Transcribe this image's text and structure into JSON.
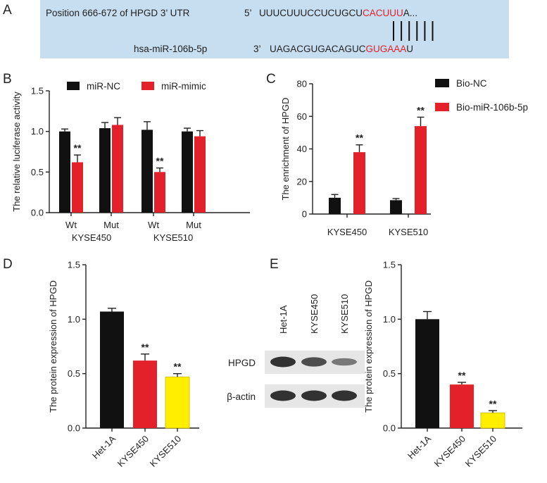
{
  "panel_letters": {
    "a": "A",
    "b": "B",
    "c": "C",
    "d": "D",
    "e": "E"
  },
  "colors": {
    "black": "#111111",
    "red": "#e3212b",
    "yellow": "#ffee00",
    "banner": "#c7ddf0"
  },
  "panel_a": {
    "utr_label": "Position 666-672 of HPGD 3’ UTR",
    "utr_prime": "5’",
    "utr_seq_prefix": "UUUCUUUCCUCUGCU",
    "utr_seq_site": "CACUUU",
    "utr_seq_suffix": "A...",
    "mirna_label": "hsa-miR-106b-5p",
    "mirna_prime": "3’",
    "mirna_seq_prefix": "UAGACGUGACAGUC",
    "mirna_seq_site": "GUGAAA",
    "mirna_seq_suffix": "U"
  },
  "chart_data": [
    {
      "panel": "B",
      "type": "bar",
      "ylabel": "The relative luciferase activity",
      "ylim": [
        0,
        1.5
      ],
      "yticks": [
        "0.0",
        "0.5",
        "1.0",
        "1.5"
      ],
      "categories": [
        "Wt",
        "Mut",
        "Wt",
        "Mut"
      ],
      "group_labels": [
        "KYSE450",
        "KYSE510"
      ],
      "series": [
        {
          "name": "miR-NC",
          "color": "#111111",
          "values": [
            1.0,
            1.04,
            1.02,
            1.0
          ],
          "errors": [
            0.03,
            0.07,
            0.1,
            0.04
          ]
        },
        {
          "name": "miR-mimic",
          "color": "#e3212b",
          "values": [
            0.62,
            1.08,
            0.5,
            0.94
          ],
          "errors": [
            0.09,
            0.09,
            0.05,
            0.07
          ]
        }
      ],
      "significance": [
        "**",
        "",
        "**",
        ""
      ],
      "legend": "top"
    },
    {
      "panel": "C",
      "type": "bar",
      "ylabel": "The enrichment of HPGD",
      "ylim": [
        0,
        80
      ],
      "yticks": [
        "0",
        "20",
        "40",
        "60",
        "80"
      ],
      "categories": [
        "KYSE450",
        "KYSE510"
      ],
      "series": [
        {
          "name": "Bio-NC",
          "color": "#111111",
          "values": [
            10,
            8.5
          ],
          "errors": [
            2,
            1
          ]
        },
        {
          "name": "Bio-miR-106b-5p",
          "color": "#e3212b",
          "values": [
            38,
            54
          ],
          "errors": [
            4.5,
            5.5
          ]
        }
      ],
      "significance": [
        "**",
        "**"
      ],
      "legend": "top-right"
    },
    {
      "panel": "D",
      "type": "bar",
      "ylabel": "The protein expression of HPGD",
      "ylim": [
        0,
        1.5
      ],
      "yticks": [
        "0.0",
        "0.5",
        "1.0",
        "1.5"
      ],
      "categories": [
        "Het-1A",
        "KYSE450",
        "KYSE510"
      ],
      "values": [
        1.07,
        0.62,
        0.47
      ],
      "errors": [
        0.03,
        0.06,
        0.03
      ],
      "colors": [
        "#111111",
        "#e3212b",
        "#ffee00"
      ],
      "significance": [
        "",
        "**",
        "**"
      ]
    },
    {
      "panel": "E",
      "type": "bar",
      "ylabel": "The protein expression of HPGD",
      "ylim": [
        0,
        1.5
      ],
      "yticks": [
        "0.0",
        "0.5",
        "1.0",
        "1.5"
      ],
      "categories": [
        "Het-1A",
        "KYSE450",
        "KYSE510"
      ],
      "values": [
        1.0,
        0.4,
        0.14
      ],
      "errors": [
        0.07,
        0.02,
        0.02
      ],
      "colors": [
        "#111111",
        "#e3212b",
        "#ffee00"
      ],
      "significance": [
        "",
        "**",
        "**"
      ]
    }
  ],
  "western_blot": {
    "lanes": [
      "Het-1A",
      "KYSE450",
      "KYSE510"
    ],
    "rows": [
      {
        "label": "HPGD",
        "intensity": [
          1.0,
          0.75,
          0.35
        ]
      },
      {
        "label": "β-actin",
        "intensity": [
          1.0,
          1.0,
          1.0
        ]
      }
    ]
  }
}
